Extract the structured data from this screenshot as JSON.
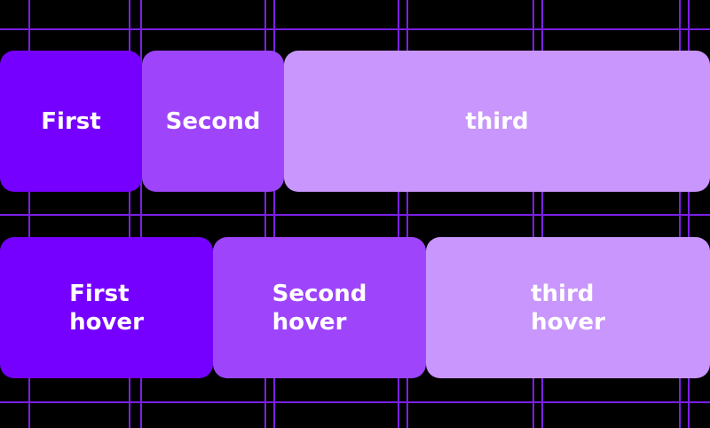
{
  "colors": {
    "background": "#000000",
    "grid_line": "#7b1fe6",
    "first": "#7600ff",
    "second": "#9e45fb",
    "third": "#c896fc",
    "text": "#ffffff"
  },
  "row_default": {
    "items": [
      {
        "label": "First"
      },
      {
        "label": "Second"
      },
      {
        "label": "third"
      }
    ]
  },
  "row_hover": {
    "items": [
      {
        "label": "First\nhover"
      },
      {
        "label": "Second\nhover"
      },
      {
        "label": "third\nhover"
      }
    ]
  }
}
